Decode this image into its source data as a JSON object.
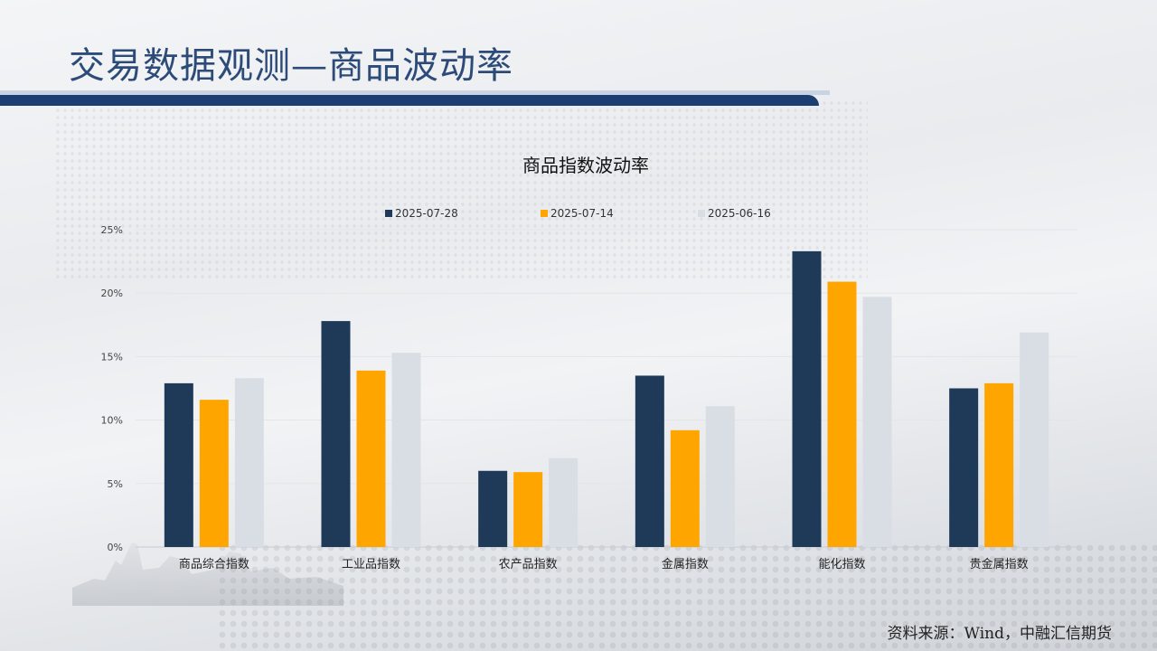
{
  "page": {
    "title": "交易数据观测—商品波动率",
    "source": "资料来源：Wind，中融汇信期货"
  },
  "colors": {
    "series_1": "#1e3a58",
    "series_2": "#ffa500",
    "series_3": "#d9dee5",
    "title": "#2d4b78",
    "bar": "#1d3e73"
  },
  "chart_data": {
    "type": "bar",
    "title": "商品指数波动率",
    "categories": [
      "商品综合指数",
      "工业品指数",
      "农产品指数",
      "金属指数",
      "能化指数",
      "贵金属指数"
    ],
    "series": [
      {
        "name": "2025-07-28",
        "values": [
          12.9,
          17.8,
          6.0,
          13.5,
          23.3,
          12.5
        ]
      },
      {
        "name": "2025-07-14",
        "values": [
          11.6,
          13.9,
          5.9,
          9.2,
          20.9,
          12.9
        ]
      },
      {
        "name": "2025-06-16",
        "values": [
          13.3,
          15.3,
          7.0,
          11.1,
          19.7,
          16.9
        ]
      }
    ],
    "y_ticks": [
      "0%",
      "5%",
      "10%",
      "15%",
      "20%",
      "25%"
    ],
    "ylim": [
      0,
      25
    ],
    "grid": true,
    "legend_position": "top"
  }
}
